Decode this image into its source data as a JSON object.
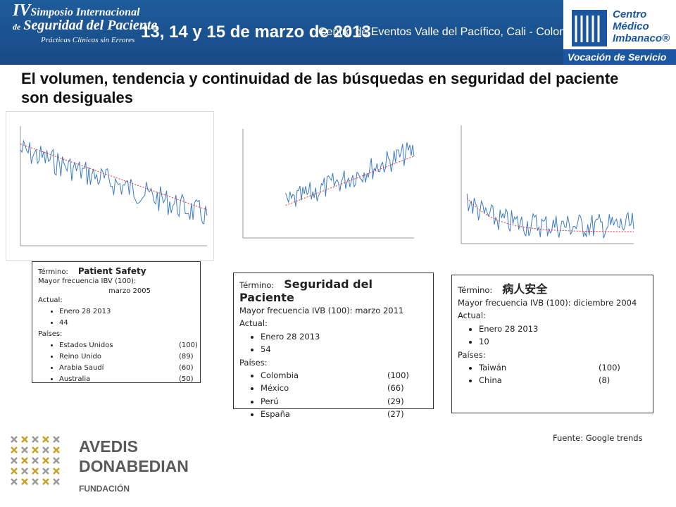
{
  "header": {
    "event_number": "IV",
    "event_line1": "Simposio Internacional",
    "event_line2": "Seguridad del Paciente",
    "event_prefix": "de",
    "event_tagline": "Prácticas Clínicas sin Errores",
    "dates": "13, 14 y 15 de marzo de 2013",
    "venue": "Centro de Eventos Valle del Pacífico, Cali - Colombia",
    "logo_line1": "Centro",
    "logo_line2": "Médico",
    "logo_line3": "Imbanaco®",
    "logo_tagline": "Vocación de Servicio"
  },
  "title": "El volumen, tendencia y continuidad de las búsquedas en seguridad del paciente  son desiguales",
  "boxes": [
    {
      "term_label": "Término:",
      "term": "Patient Safety",
      "freq": "Mayor frecuencia IBV (100):",
      "freq_date": "marzo 2005",
      "actual_label": "Actual:",
      "actual": [
        "Enero 28 2013",
        "44"
      ],
      "countries_label": "Países:",
      "countries": [
        {
          "name": "Estados Unidos",
          "value": "(100)"
        },
        {
          "name": "Reino Unido",
          "value": "(89)"
        },
        {
          "name": "Arabia Saudí",
          "value": "(60)"
        },
        {
          "name": "Australia",
          "value": "(50)"
        }
      ]
    },
    {
      "term_label": "Término:",
      "term": "Seguridad del Paciente",
      "freq": "Mayor frecuencia IVB (100): marzo 2011",
      "actual_label": "Actual:",
      "actual": [
        "Enero 28  2013",
        "54"
      ],
      "countries_label": "Países:",
      "countries": [
        {
          "name": "Colombia",
          "value": "(100)"
        },
        {
          "name": "México",
          "value": "(66)"
        },
        {
          "name": "Perú",
          "value": "(29)"
        },
        {
          "name": "España",
          "value": "(27)"
        }
      ]
    },
    {
      "term_label": "Término:",
      "term": "病人安全",
      "freq": "Mayor frecuencia IVB (100): diciembre 2004",
      "actual_label": "Actual:",
      "actual": [
        "Enero 28  2013",
        "10"
      ],
      "countries_label": "Países:",
      "countries": [
        {
          "name": "Taiwán",
          "value": "(100)"
        },
        {
          "name": "China",
          "value": "(8)"
        }
      ]
    }
  ],
  "source": "Fuente: Google trends",
  "footer": {
    "logo_line1": "AVEDIS",
    "logo_line2": "DONABEDIAN",
    "logo_line3": "FUNDACIÓN"
  }
}
